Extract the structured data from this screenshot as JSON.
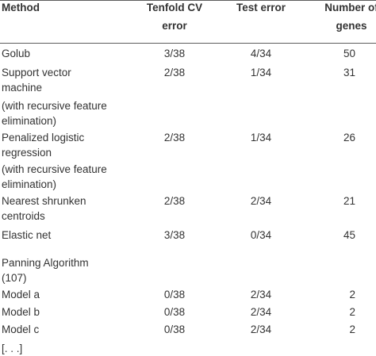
{
  "table": {
    "headers": {
      "method": "Method",
      "cv_line1": "Tenfold CV",
      "cv_line2": "error",
      "test": "Test error",
      "genes_line1": "Number of",
      "genes_line2": "genes"
    },
    "rows": [
      {
        "method": [
          "Golub"
        ],
        "cv": "3/38",
        "test": "4/34",
        "genes": "50"
      },
      {
        "method": [
          "Support vector",
          "machine"
        ],
        "cv": "2/38",
        "test": "1/34",
        "genes": "31"
      },
      {
        "method": [
          "(with recursive feature",
          "elimination)"
        ],
        "cv": "",
        "test": "",
        "genes": ""
      },
      {
        "method": [
          "Penalized logistic",
          "regression"
        ],
        "cv": "2/38",
        "test": "1/34",
        "genes": "26"
      },
      {
        "method": [
          "(with recursive feature",
          "elimination)"
        ],
        "cv": "",
        "test": "",
        "genes": ""
      },
      {
        "method": [
          "Nearest shrunken",
          "centroids"
        ],
        "cv": "2/38",
        "test": "2/34",
        "genes": "21"
      },
      {
        "method": [
          "Elastic net"
        ],
        "cv": "3/38",
        "test": "0/34",
        "genes": "45"
      },
      {
        "method": [
          "Panning Algorithm",
          "(107)"
        ],
        "cv": "",
        "test": "",
        "genes": ""
      },
      {
        "method": [
          "Model a"
        ],
        "cv": "0/38",
        "test": "2/34",
        "genes": "2"
      },
      {
        "method": [
          "Model b"
        ],
        "cv": "0/38",
        "test": "2/34",
        "genes": "2"
      },
      {
        "method": [
          "Model c"
        ],
        "cv": "0/38",
        "test": "2/34",
        "genes": "2"
      },
      {
        "method": [
          "[. . .]"
        ],
        "cv": "",
        "test": "",
        "genes": ""
      }
    ]
  }
}
